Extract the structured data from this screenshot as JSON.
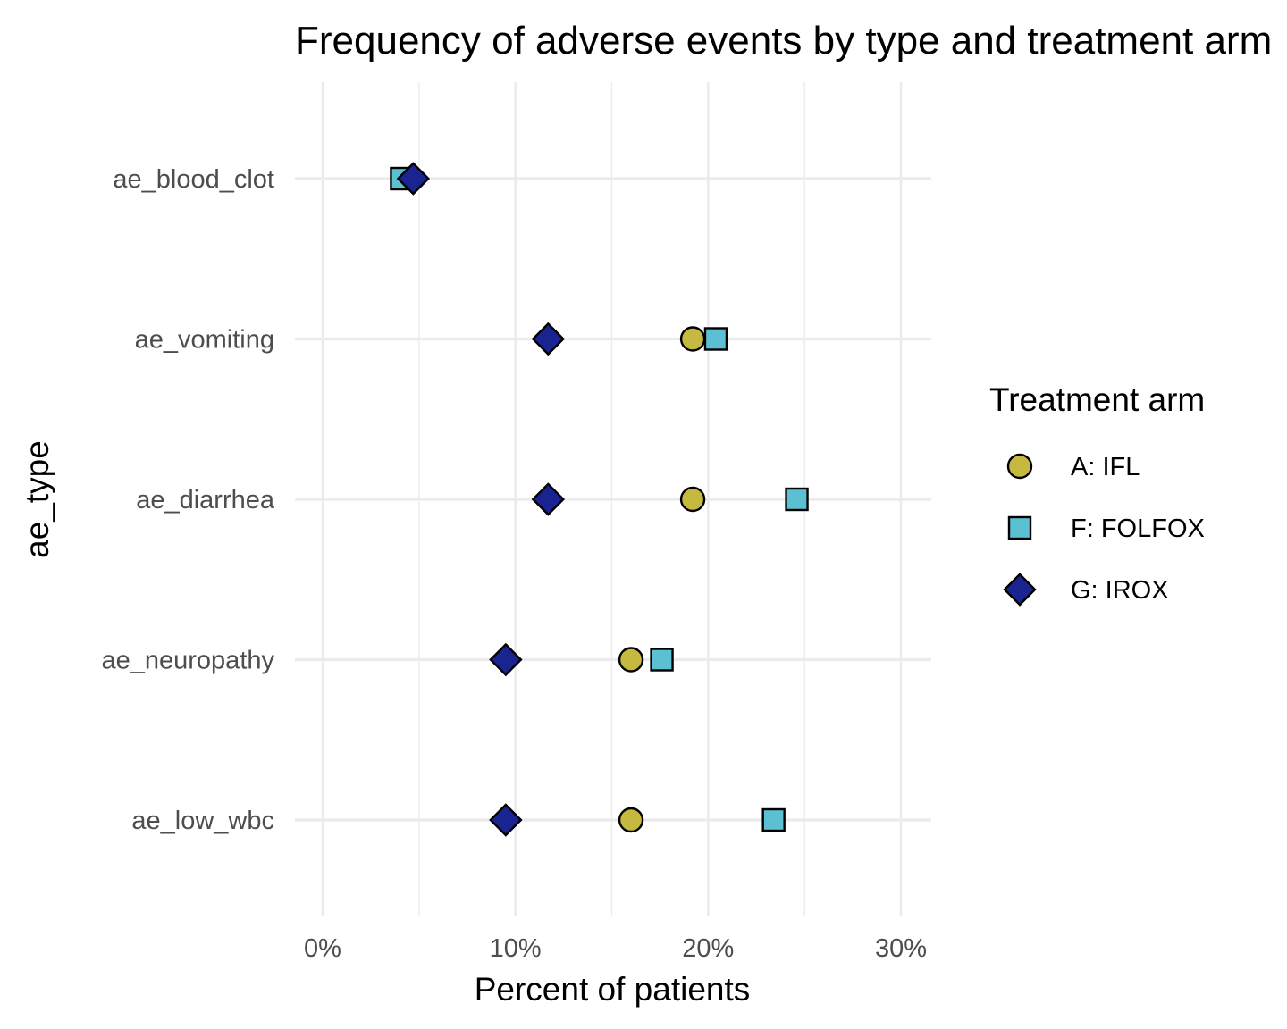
{
  "chart_data": {
    "type": "scatter",
    "title": "Frequency of adverse events by type and treatment arm",
    "xlabel": "Percent of patients",
    "ylabel": "ae_type",
    "xlim": [
      0,
      30
    ],
    "x_ticks": [
      0,
      10,
      20,
      30
    ],
    "x_tick_labels": [
      "0%",
      "10%",
      "20%",
      "30%"
    ],
    "categories": [
      "ae_blood_clot",
      "ae_vomiting",
      "ae_diarrhea",
      "ae_neuropathy",
      "ae_low_wbc"
    ],
    "grid": true,
    "legend": {
      "title": "Treatment arm",
      "position": "right"
    },
    "series": [
      {
        "name": "A: IFL",
        "shape": "circle",
        "color": "#c5b93f",
        "values": [
          null,
          19.2,
          19.2,
          16.0,
          16.0
        ]
      },
      {
        "name": "F: FOLFOX",
        "shape": "square",
        "color": "#5bc0d1",
        "values": [
          4.1,
          20.4,
          24.6,
          17.6,
          23.4
        ]
      },
      {
        "name": "G: IROX",
        "shape": "diamond",
        "color": "#1a2490",
        "values": [
          4.7,
          11.7,
          11.7,
          9.5,
          9.5
        ]
      }
    ]
  }
}
